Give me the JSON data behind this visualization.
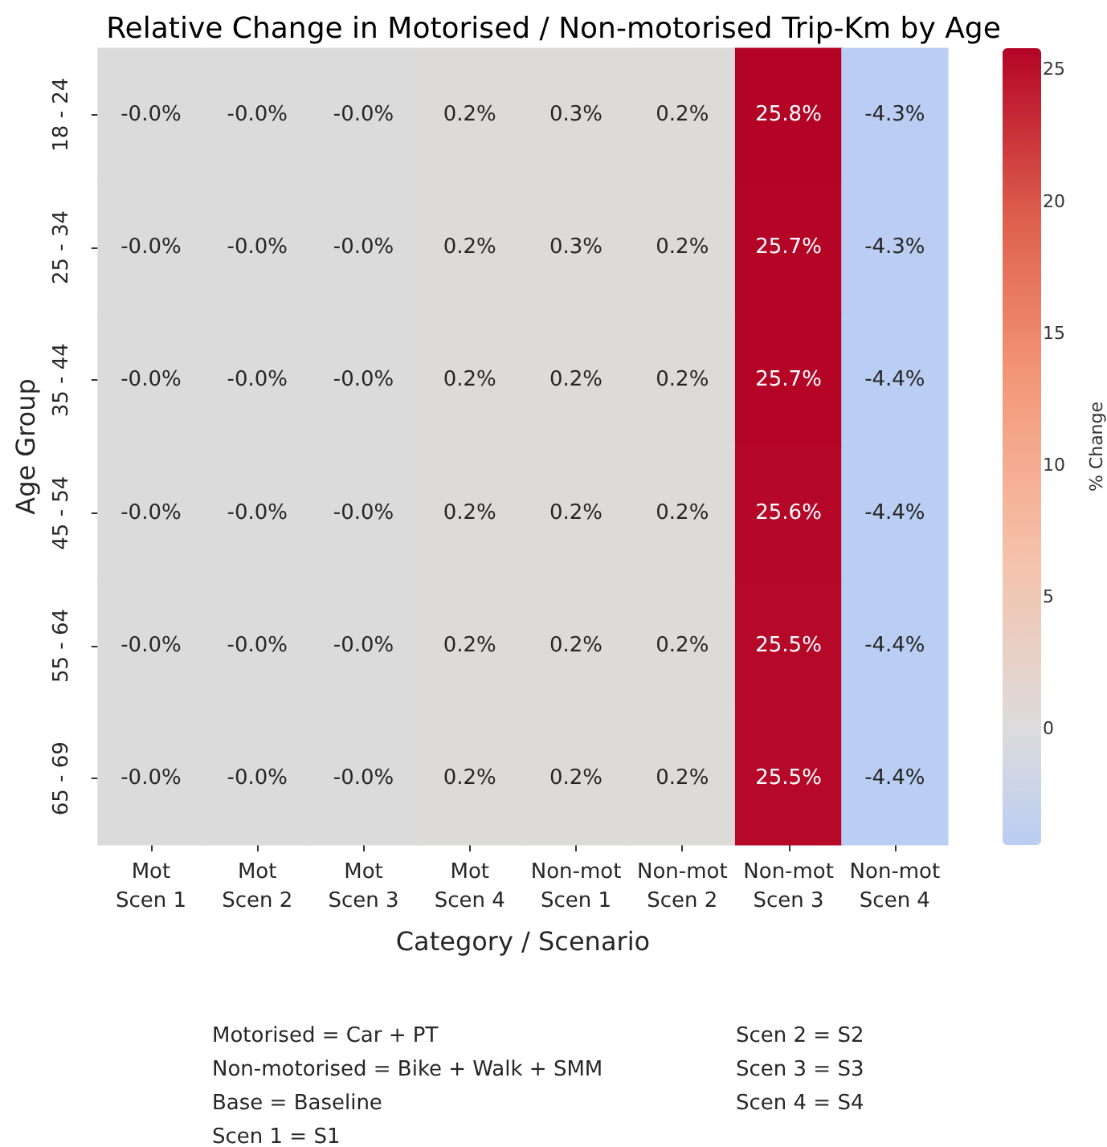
{
  "chart_data": {
    "type": "heatmap",
    "title": "Relative Change in Motorised / Non-motorised Trip-Km by Age",
    "xlabel": "Category / Scenario",
    "ylabel": "Age Group",
    "clabel": "% Change",
    "categories": [
      "Mot Scen 1",
      "Mot Scen 2",
      "Mot Scen 3",
      "Mot Scen 4",
      "Non-mot Scen 1",
      "Non-mot Scen 2",
      "Non-mot Scen 3",
      "Non-mot Scen 4"
    ],
    "y_categories": [
      "18 - 24",
      "25 - 34",
      "35 - 44",
      "45 - 54",
      "55 - 64",
      "65 - 69"
    ],
    "cells": [
      [
        -0.0,
        -0.0,
        -0.0,
        0.2,
        0.3,
        0.2,
        25.8,
        -4.3
      ],
      [
        -0.0,
        -0.0,
        -0.0,
        0.2,
        0.3,
        0.2,
        25.7,
        -4.3
      ],
      [
        -0.0,
        -0.0,
        -0.0,
        0.2,
        0.2,
        0.2,
        25.7,
        -4.4
      ],
      [
        -0.0,
        -0.0,
        -0.0,
        0.2,
        0.2,
        0.2,
        25.6,
        -4.4
      ],
      [
        -0.0,
        -0.0,
        -0.0,
        0.2,
        0.2,
        0.2,
        25.5,
        -4.4
      ],
      [
        -0.0,
        -0.0,
        -0.0,
        0.2,
        0.2,
        0.2,
        25.5,
        -4.4
      ]
    ],
    "cell_labels": [
      [
        "-0.0%",
        "-0.0%",
        "-0.0%",
        "0.2%",
        "0.3%",
        "0.2%",
        "25.8%",
        "-4.3%"
      ],
      [
        "-0.0%",
        "-0.0%",
        "-0.0%",
        "0.2%",
        "0.3%",
        "0.2%",
        "25.7%",
        "-4.3%"
      ],
      [
        "-0.0%",
        "-0.0%",
        "-0.0%",
        "0.2%",
        "0.2%",
        "0.2%",
        "25.7%",
        "-4.4%"
      ],
      [
        "-0.0%",
        "-0.0%",
        "-0.0%",
        "0.2%",
        "0.2%",
        "0.2%",
        "25.6%",
        "-4.4%"
      ],
      [
        "-0.0%",
        "-0.0%",
        "-0.0%",
        "0.2%",
        "0.2%",
        "0.2%",
        "25.5%",
        "-4.4%"
      ],
      [
        "-0.0%",
        "-0.0%",
        "-0.0%",
        "0.2%",
        "0.2%",
        "0.2%",
        "25.5%",
        "-4.4%"
      ]
    ],
    "clim": [
      -4.4,
      25.8
    ],
    "cticks": [
      0,
      5,
      10,
      15,
      20,
      25
    ],
    "annotations": [
      "Motorised = Car + PT",
      "Non-motorised = Bike + Walk + SMM",
      "Base = Baseline",
      "Scen 1 = S1",
      "Scen 2 = S2",
      "Scen 3 = S3",
      "Scen 4 = S4"
    ]
  }
}
